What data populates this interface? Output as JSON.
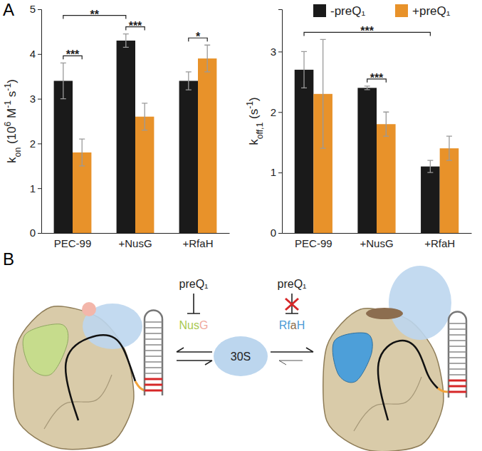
{
  "panels": [
    "A",
    "B"
  ],
  "chart_data": [
    {
      "type": "bar",
      "ylabel": [
        {
          "t": "k"
        },
        {
          "t": "on",
          "sub": true
        },
        {
          "t": " (10"
        },
        {
          "t": "6",
          "sup": true
        },
        {
          "t": " M"
        },
        {
          "t": "-1",
          "sup": true
        },
        {
          "t": " s"
        },
        {
          "t": "-1",
          "sup": true
        },
        {
          "t": ")"
        }
      ],
      "categories": [
        "PEC-99",
        "+NusG",
        "+RfaH"
      ],
      "series": [
        {
          "name": "-preQ₁",
          "color": "#1a1a1a",
          "values": [
            3.4,
            4.3,
            3.4
          ],
          "errors": [
            0.4,
            0.15,
            0.2
          ]
        },
        {
          "name": "+preQ₁",
          "color": "#e8922a",
          "values": [
            1.8,
            2.6,
            3.9
          ],
          "errors": [
            0.3,
            0.3,
            0.3
          ]
        }
      ],
      "ylim": [
        0,
        5
      ],
      "yticks": [
        0,
        1,
        2,
        3,
        4,
        5
      ],
      "significance": [
        {
          "from": [
            0,
            0
          ],
          "to": [
            1,
            0
          ],
          "label": "***"
        },
        {
          "from": [
            0,
            0
          ],
          "to": [
            0,
            1
          ],
          "label": "**"
        },
        {
          "from": [
            0,
            1
          ],
          "to": [
            1,
            1
          ],
          "label": "***"
        },
        {
          "from": [
            0,
            2
          ],
          "to": [
            1,
            2
          ],
          "label": "*"
        }
      ]
    },
    {
      "type": "bar",
      "ylabel": [
        {
          "t": "k"
        },
        {
          "t": "off,1",
          "sub": true
        },
        {
          "t": " (s"
        },
        {
          "t": "-1",
          "sup": true
        },
        {
          "t": ")"
        }
      ],
      "categories": [
        "PEC-99",
        "+NusG",
        "+RfaH"
      ],
      "series": [
        {
          "name": "-preQ₁",
          "color": "#1a1a1a",
          "values": [
            2.7,
            2.4,
            1.1
          ],
          "errors": [
            0.3,
            0.03,
            0.1
          ]
        },
        {
          "name": "+preQ₁",
          "color": "#e8922a",
          "values": [
            2.3,
            1.8,
            1.4
          ],
          "errors": [
            0.9,
            0.2,
            0.2
          ]
        }
      ],
      "ylim": [
        0,
        3.7
      ],
      "yticks": [
        0,
        1,
        2,
        3
      ],
      "legend": "top right",
      "significance": [
        {
          "from": [
            0,
            0
          ],
          "to": [
            0,
            2
          ],
          "label": "***"
        },
        {
          "from": [
            0,
            1
          ],
          "to": [
            1,
            1
          ],
          "label": "***"
        }
      ]
    }
  ],
  "diagram": {
    "center": "30S",
    "ligand": "preQ₁",
    "left_factor": [
      {
        "t": "Nus",
        "color": "#a9c94f"
      },
      {
        "t": "G",
        "color": "#f0a89c"
      }
    ],
    "right_factor": [
      {
        "t": "Rf",
        "color": "#4a9bd6"
      },
      {
        "t": "a",
        "color": "#8b6b4a"
      },
      {
        "t": "H",
        "color": "#4a9bd6"
      }
    ]
  }
}
